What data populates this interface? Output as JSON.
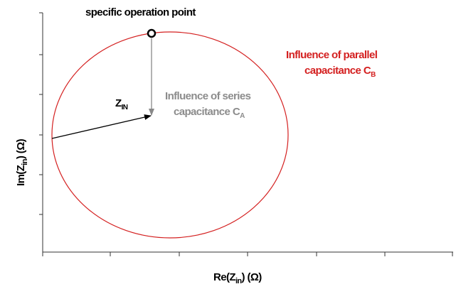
{
  "annotations": {
    "operation_point": "specific operation point",
    "parallel": {
      "line1": "Influence of parallel",
      "line2": "capacitance C",
      "sub": "B"
    },
    "series": {
      "line1": "Influence of series",
      "line2": "capacitance C",
      "sub": "A"
    },
    "zin": {
      "main": "Z",
      "sub": "IN"
    }
  },
  "axes": {
    "y": {
      "main": "Im(Z",
      "sub": "in",
      "rest": ") (Ω)"
    },
    "x": {
      "main": "Re(Z",
      "sub": "in",
      "rest": ") (Ω)"
    }
  }
}
